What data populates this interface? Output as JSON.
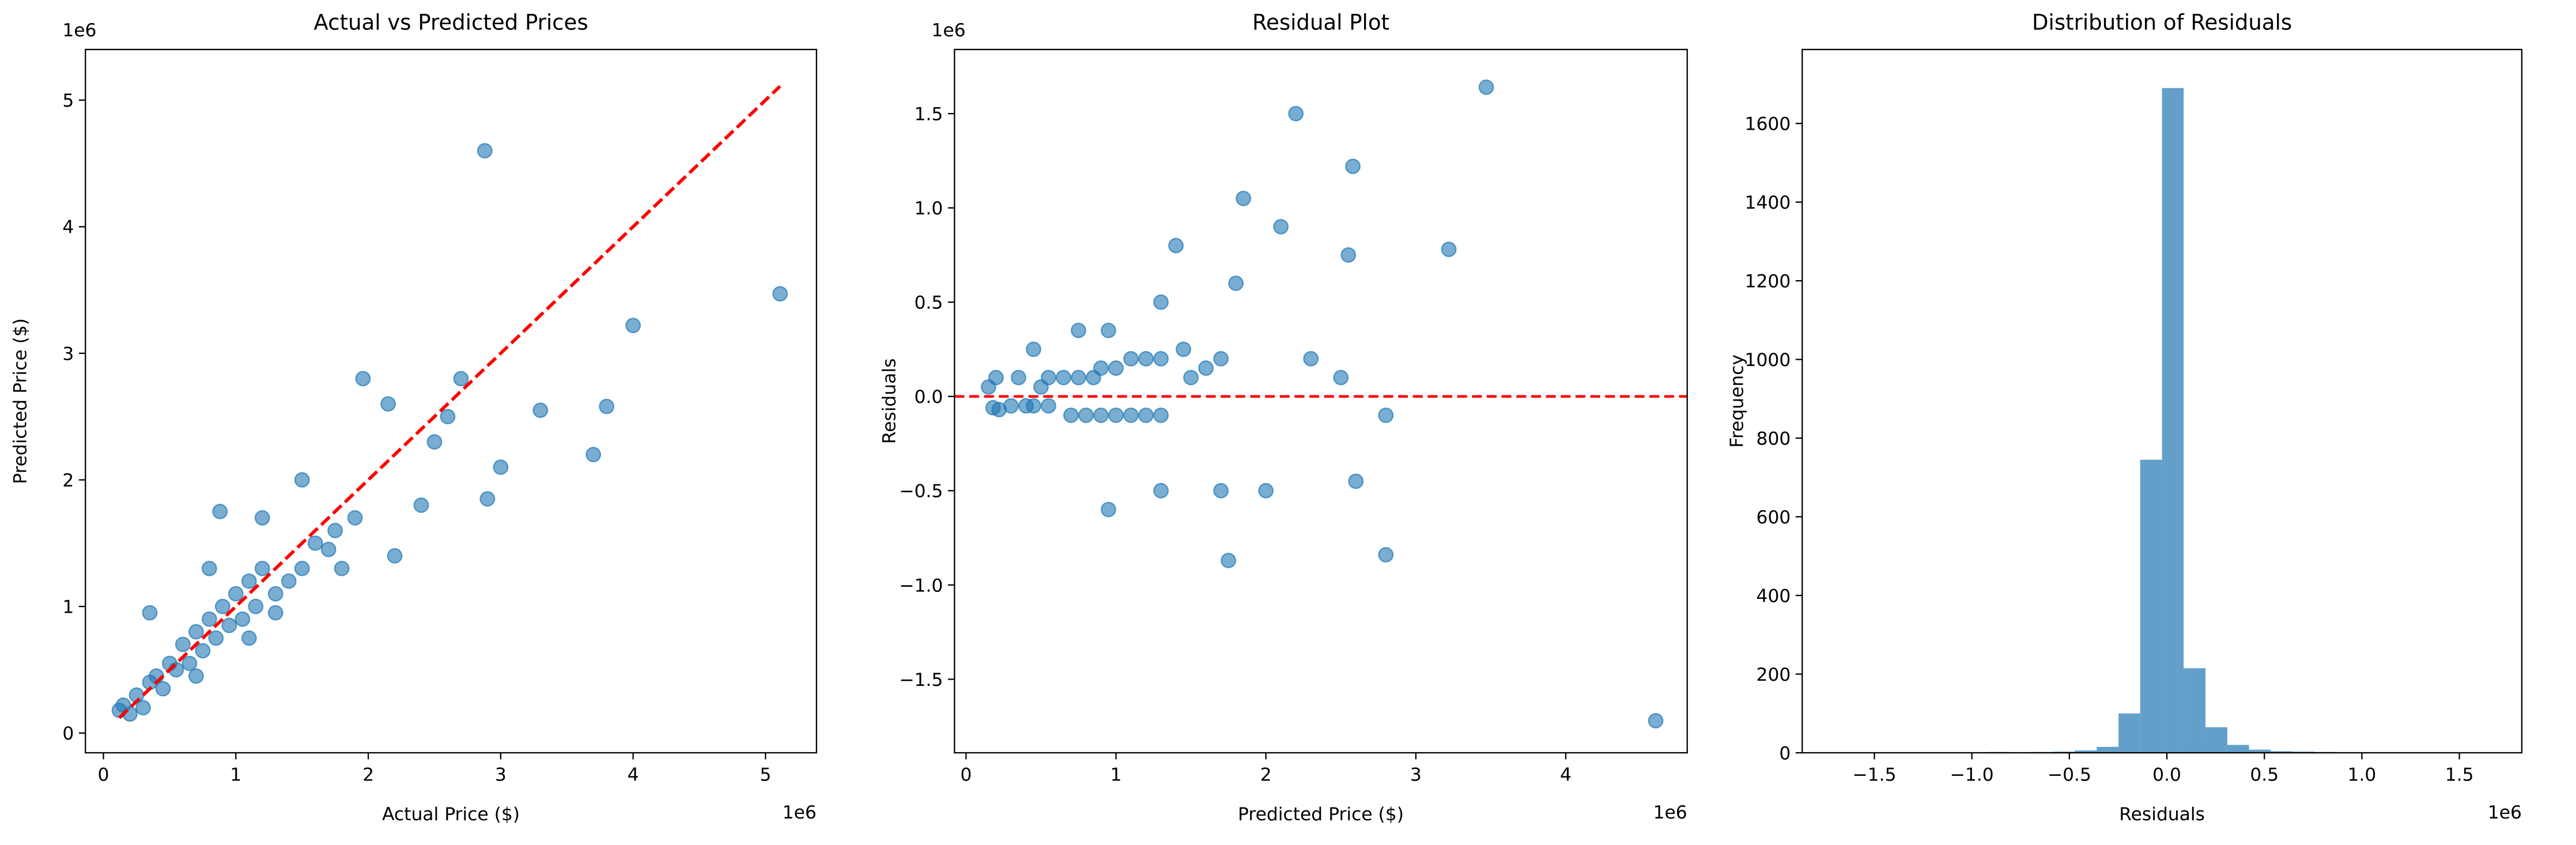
{
  "chart_data": [
    {
      "type": "scatter",
      "title": "Actual vs Predicted Prices",
      "xlabel": "Actual Price ($)",
      "ylabel": "Predicted Price ($)",
      "x_offset": "1e6",
      "y_offset": "1e6",
      "color": "#1f77b4",
      "x": [
        0.12,
        0.15,
        0.2,
        0.25,
        0.3,
        0.35,
        0.4,
        0.45,
        0.5,
        0.55,
        0.6,
        0.65,
        0.7,
        0.75,
        0.8,
        0.85,
        0.9,
        0.95,
        1.0,
        1.05,
        1.1,
        1.15,
        1.2,
        1.3,
        0.35,
        0.88,
        1.4,
        1.5,
        1.6,
        1.7,
        1.8,
        1.9,
        1.96,
        2.15,
        2.4,
        2.6,
        2.7,
        2.88,
        3.0,
        3.3,
        3.7,
        3.8,
        4.0,
        5.11,
        2.9,
        2.2,
        1.3,
        1.1,
        0.7,
        0.8,
        1.5,
        2.5,
        1.2,
        1.75
      ],
      "values": [
        0.18,
        0.22,
        0.15,
        0.3,
        0.2,
        0.4,
        0.45,
        0.35,
        0.55,
        0.5,
        0.7,
        0.55,
        0.8,
        0.65,
        0.9,
        0.75,
        1.0,
        0.85,
        1.1,
        0.9,
        1.2,
        1.0,
        1.3,
        1.1,
        0.95,
        1.75,
        1.2,
        1.3,
        1.5,
        1.45,
        1.3,
        1.7,
        2.8,
        2.6,
        1.8,
        2.5,
        2.8,
        4.6,
        2.1,
        2.55,
        2.2,
        2.58,
        3.22,
        3.47,
        1.85,
        1.4,
        0.95,
        0.75,
        0.45,
        1.3,
        2.0,
        2.3,
        1.7,
        1.6
      ],
      "reference_line": {
        "x": [
          0.12,
          5.11
        ],
        "y": [
          0.12,
          5.11
        ],
        "color": "#ff0000"
      },
      "xlim": [
        -0.136,
        5.385
      ],
      "ylim": [
        -0.156,
        5.4
      ],
      "xticks": [
        0,
        1,
        2,
        3,
        4,
        5
      ],
      "yticks": [
        0,
        1,
        2,
        3,
        4,
        5
      ]
    },
    {
      "type": "scatter",
      "title": "Residual Plot",
      "xlabel": "Predicted Price ($)",
      "ylabel": "Residuals",
      "x_offset": "1e6",
      "y_offset": "1e6",
      "color": "#1f77b4",
      "x": [
        0.18,
        0.22,
        0.15,
        0.3,
        0.2,
        0.4,
        0.45,
        0.35,
        0.55,
        0.5,
        0.7,
        0.55,
        0.8,
        0.65,
        0.9,
        0.75,
        1.0,
        0.85,
        1.1,
        0.9,
        1.2,
        1.0,
        1.3,
        1.1,
        0.95,
        1.75,
        1.2,
        1.3,
        1.5,
        1.45,
        1.3,
        1.7,
        2.8,
        2.6,
        1.8,
        2.5,
        2.8,
        4.6,
        2.1,
        2.55,
        2.2,
        2.58,
        3.22,
        3.47,
        1.85,
        1.4,
        0.95,
        0.75,
        0.45,
        1.3,
        2.0,
        2.3,
        1.7,
        1.6
      ],
      "values": [
        -0.06,
        -0.07,
        0.05,
        -0.05,
        0.1,
        -0.05,
        -0.05,
        0.1,
        -0.05,
        0.05,
        -0.1,
        0.1,
        -0.1,
        0.1,
        -0.1,
        0.1,
        -0.1,
        0.1,
        -0.1,
        0.15,
        -0.1,
        0.15,
        -0.1,
        0.2,
        -0.6,
        -0.87,
        0.2,
        0.2,
        0.1,
        0.25,
        0.5,
        0.2,
        -0.84,
        -0.45,
        0.6,
        0.1,
        -0.1,
        -1.72,
        0.9,
        0.75,
        1.5,
        1.22,
        0.78,
        1.64,
        1.05,
        0.8,
        0.35,
        0.35,
        0.25,
        -0.5,
        -0.5,
        0.2,
        -0.5,
        0.15
      ],
      "hline": 0,
      "hline_color": "#ff0000",
      "xlim": [
        -0.077,
        4.81
      ],
      "ylim": [
        -1.89,
        1.84
      ],
      "xticks": [
        0,
        1,
        2,
        3,
        4
      ],
      "yticks": [
        {
          "value": -1.5,
          "label": "−1.5"
        },
        {
          "value": -1,
          "label": "−1.0"
        },
        {
          "value": -0.5,
          "label": "−0.5"
        },
        {
          "value": 0,
          "label": "0.0"
        },
        0.5,
        {
          "value": 1,
          "label": "1.0"
        },
        1.5
      ]
    },
    {
      "type": "histogram",
      "title": "Distribution of Residuals",
      "xlabel": "Residuals",
      "ylabel": "Frequency",
      "x_offset": "1e6",
      "color": "#1f77b4",
      "bins": [
        -1.7,
        -1.588,
        -1.477,
        -1.365,
        -1.253,
        -1.142,
        -1.03,
        -0.918,
        -0.807,
        -0.695,
        -0.583,
        -0.472,
        -0.36,
        -0.248,
        -0.137,
        -0.025,
        0.086,
        0.198,
        0.31,
        0.421,
        0.533,
        0.645,
        0.756,
        0.868,
        0.98,
        1.091,
        1.203,
        1.315,
        1.426,
        1.538,
        1.65
      ],
      "values": [
        1,
        0,
        0,
        0,
        0,
        0,
        0,
        2,
        1,
        2,
        3,
        6,
        15,
        100,
        745,
        1690,
        215,
        65,
        20,
        8,
        4,
        3,
        2,
        1,
        0,
        0,
        1,
        0,
        0,
        1
      ],
      "xlim": [
        -1.87,
        1.82
      ],
      "ylim": [
        0,
        1788
      ],
      "xticks": [
        {
          "value": -1.5,
          "label": "−1.5"
        },
        {
          "value": -1,
          "label": "−1.0"
        },
        {
          "value": -0.5,
          "label": "−0.5"
        },
        {
          "value": 0,
          "label": "0.0"
        },
        0.5,
        {
          "value": 1,
          "label": "1.0"
        },
        1.5
      ],
      "yticks": [
        0,
        200,
        400,
        600,
        800,
        1000,
        1200,
        1400,
        1600
      ]
    }
  ]
}
